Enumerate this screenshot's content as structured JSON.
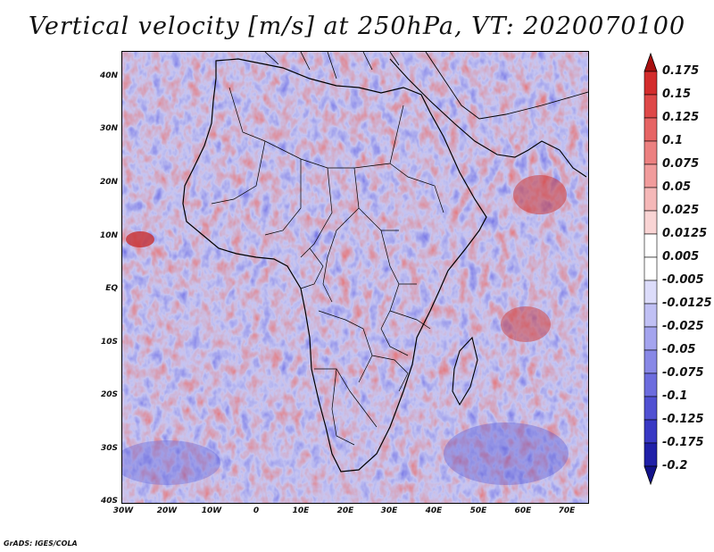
{
  "title": "Vertical velocity [m/s] at 250hPa, VT: 2020070100",
  "credit": "GrADS: IGES/COLA",
  "map": {
    "lat_labels": [
      "40N",
      "30N",
      "20N",
      "10N",
      "EQ",
      "10S",
      "20S",
      "30S",
      "40S"
    ],
    "lon_labels": [
      "30W",
      "20W",
      "10W",
      "0",
      "10E",
      "20E",
      "30E",
      "40E",
      "50E",
      "60E",
      "70E"
    ],
    "lat_range": [
      -40,
      45
    ],
    "lon_range": [
      -30,
      75
    ]
  },
  "colorbar": {
    "labels": [
      "0.175",
      "0.15",
      "0.125",
      "0.1",
      "0.075",
      "0.05",
      "0.025",
      "0.0125",
      "0.005",
      "-0.005",
      "-0.0125",
      "-0.025",
      "-0.05",
      "-0.075",
      "-0.1",
      "-0.125",
      "-0.175",
      "-0.2"
    ],
    "colors": [
      "#c41818",
      "#d32c2c",
      "#de4848",
      "#e66464",
      "#ec8080",
      "#f19c9c",
      "#f5b8b8",
      "#f9d4d4",
      "#ffffff",
      "#ffffff",
      "#dcdcfa",
      "#c0c0f4",
      "#a4a4ee",
      "#8888e6",
      "#6c6cde",
      "#5050d2",
      "#3838c4",
      "#2020a8"
    ],
    "top_arrow_color": "#a81010",
    "bottom_arrow_color": "#12128a"
  }
}
